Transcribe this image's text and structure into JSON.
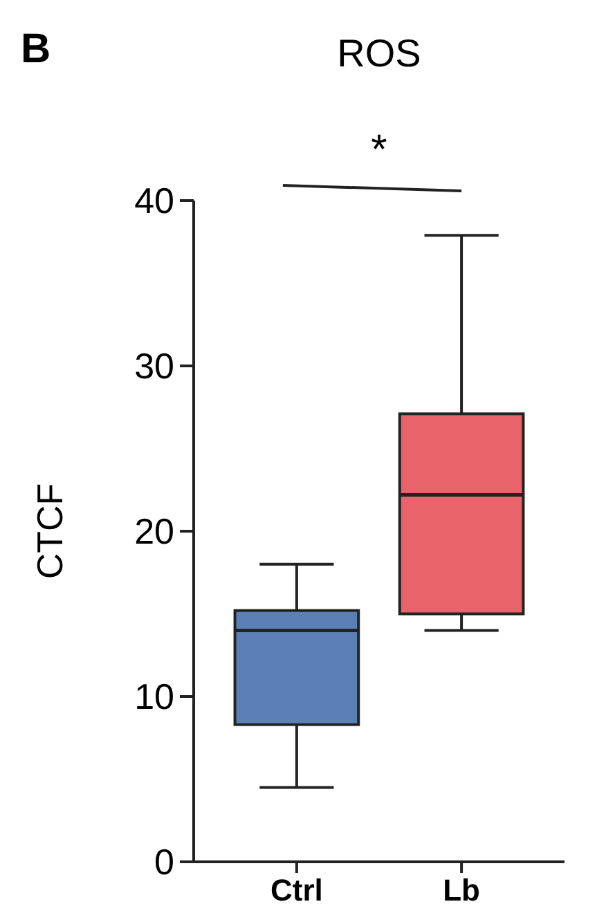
{
  "chart_data": {
    "type": "box",
    "title": "ROS",
    "ylabel": "CTCF",
    "categories": [
      "Ctrl",
      "Lb"
    ],
    "boxes": [
      {
        "low": 4.5,
        "q1": 8.3,
        "median": 14,
        "q3": 15.2,
        "high": 18
      },
      {
        "low": 14,
        "q1": 15,
        "median": 22.2,
        "q3": 27.1,
        "high": 37.9
      }
    ],
    "colors": [
      "#5b80b8",
      "#e9636b"
    ],
    "ylim": [
      0,
      40
    ],
    "yticks": [
      0,
      10,
      20,
      30,
      40
    ],
    "grid": false,
    "annotations": [
      "B",
      "*"
    ]
  }
}
